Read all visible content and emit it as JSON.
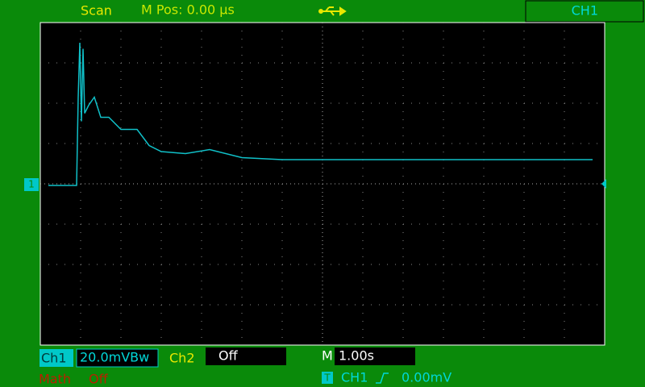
{
  "header": {
    "mode": "Scan",
    "position": "M Pos: 0.00 µs",
    "channel": "CH1"
  },
  "channel_marker": "1",
  "footer": {
    "ch1": {
      "label": "Ch1",
      "scale": "20.0mVBw"
    },
    "ch2": {
      "label": "Ch2",
      "state": "Off"
    },
    "timebase": {
      "label": "M",
      "value": "1.00s"
    },
    "math": {
      "label": "Math",
      "state": "Off"
    },
    "trigger": {
      "marker": "T",
      "source": "CH1",
      "level": "0.00mV"
    }
  },
  "waveform": {
    "x": [
      -6.8,
      -6.1,
      -6.06,
      -6.02,
      -5.98,
      -5.94,
      -5.9,
      -5.8,
      -5.66,
      -5.5,
      -5.3,
      -5.0,
      -4.6,
      -4.3,
      -4.0,
      -3.4,
      -2.8,
      -2.0,
      -1.0,
      0,
      2,
      4,
      6.7
    ],
    "values": [
      -0.8,
      -0.8,
      43,
      70,
      31,
      67,
      35,
      39,
      43,
      33,
      33,
      27,
      27,
      19,
      16,
      15,
      17,
      13,
      12,
      12,
      12,
      12,
      12
    ]
  }
}
